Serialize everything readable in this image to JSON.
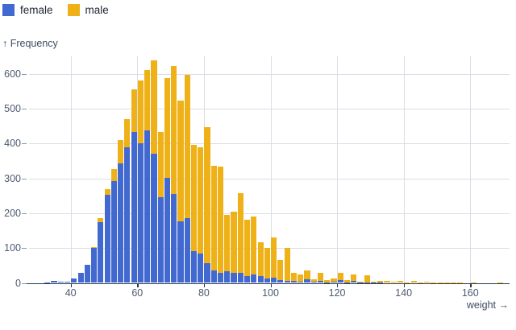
{
  "legend": [
    {
      "label": "female",
      "color": "#4269d0"
    },
    {
      "label": "male",
      "color": "#efb118"
    }
  ],
  "y_axis": {
    "label": "↑ Frequency",
    "ticks": [
      0,
      100,
      200,
      300,
      400,
      500,
      600
    ]
  },
  "x_axis": {
    "label": "weight →",
    "ticks": [
      40,
      60,
      80,
      100,
      120,
      140,
      160
    ]
  },
  "chart_data": {
    "type": "bar",
    "subtype": "overlaid-histogram",
    "title": "",
    "xlabel": "weight",
    "ylabel": "Frequency",
    "bin_width": 2,
    "xlim": [
      27,
      172
    ],
    "ylim": [
      0,
      650
    ],
    "grid": true,
    "legend_position": "top-left",
    "x": [
      32,
      34,
      36,
      38,
      40,
      42,
      44,
      46,
      48,
      50,
      52,
      54,
      56,
      58,
      60,
      62,
      64,
      66,
      68,
      70,
      72,
      74,
      76,
      78,
      80,
      82,
      84,
      86,
      88,
      90,
      92,
      94,
      96,
      98,
      100,
      102,
      104,
      106,
      108,
      110,
      112,
      114,
      116,
      118,
      120,
      122,
      124,
      126,
      128,
      130,
      132,
      134,
      136,
      138,
      140,
      142,
      144,
      146,
      148,
      150,
      152,
      154,
      156,
      158,
      160,
      162,
      164,
      166,
      168
    ],
    "series": [
      {
        "name": "female",
        "color": "#4269d0",
        "values": [
          2,
          5,
          3,
          4,
          13,
          29,
          53,
          100,
          175,
          253,
          292,
          342,
          388,
          432,
          400,
          437,
          370,
          247,
          301,
          256,
          177,
          186,
          92,
          84,
          56,
          36,
          30,
          33,
          28,
          28,
          20,
          25,
          20,
          12,
          15,
          8,
          6,
          5,
          4,
          11,
          3,
          6,
          2,
          3,
          8,
          2,
          5,
          1,
          2,
          1,
          1,
          0,
          0,
          0,
          0,
          0,
          0,
          0,
          0,
          0,
          0,
          0,
          0,
          0,
          0,
          0,
          0,
          0,
          0
        ]
      },
      {
        "name": "male",
        "color": "#efb118",
        "values": [
          0,
          0,
          0,
          0,
          0,
          0,
          0,
          103,
          185,
          269,
          327,
          409,
          470,
          555,
          580,
          612,
          639,
          434,
          587,
          622,
          523,
          597,
          396,
          390,
          448,
          336,
          333,
          196,
          205,
          257,
          182,
          190,
          117,
          100,
          130,
          65,
          100,
          30,
          25,
          36,
          10,
          28,
          7,
          13,
          30,
          9,
          25,
          4,
          23,
          4,
          6,
          5,
          4,
          5,
          2,
          5,
          1,
          3,
          1,
          2,
          2,
          1,
          1,
          0,
          1,
          0,
          0,
          0,
          2
        ]
      }
    ]
  }
}
